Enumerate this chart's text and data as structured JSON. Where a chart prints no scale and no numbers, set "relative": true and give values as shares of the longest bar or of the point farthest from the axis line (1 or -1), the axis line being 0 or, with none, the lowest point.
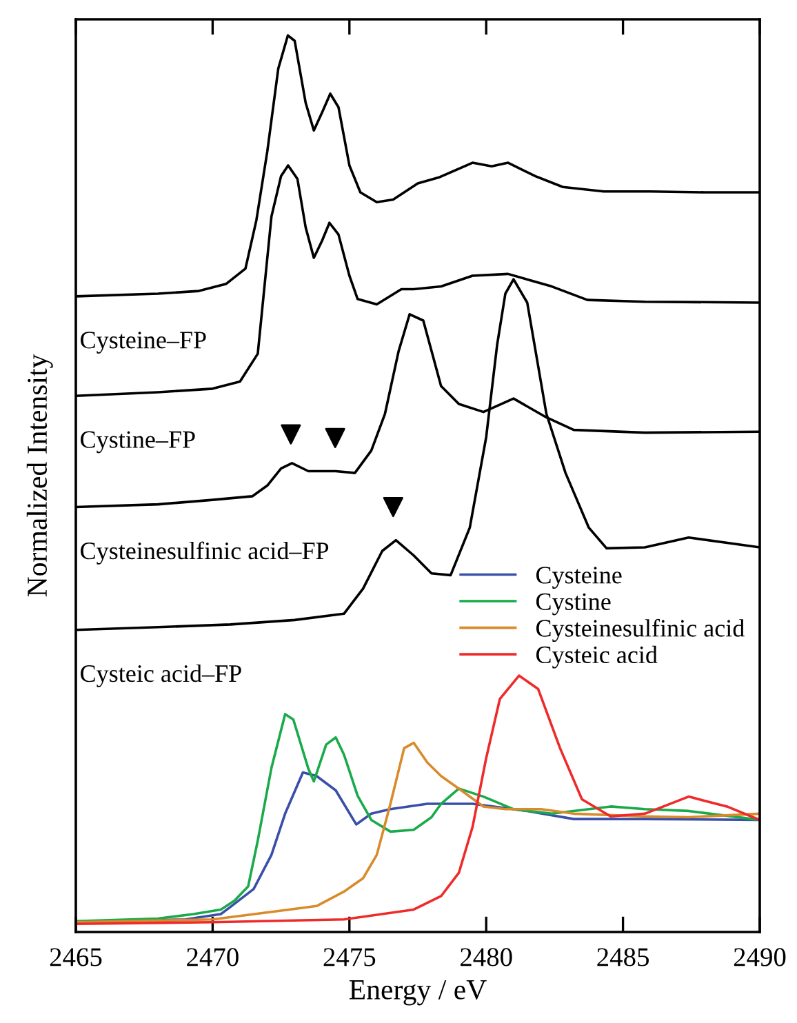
{
  "chart_data": {
    "type": "line",
    "relative": true,
    "xlabel": "Energy / eV",
    "ylabel": "Normalized Intensity",
    "xlim": [
      2465,
      2490
    ],
    "xticks": [
      2465,
      2470,
      2475,
      2480,
      2485,
      2490
    ],
    "tick_labels": "x",
    "grid": false,
    "legend": "right",
    "marker": "none",
    "line_style": "solid",
    "series": [
      {
        "name": "Cysteine–FP",
        "color": "#000000",
        "x": [
          2465,
          2468,
          2469.5,
          2470.5,
          2471.2,
          2471.6,
          2472.0,
          2472.4,
          2472.75,
          2473.0,
          2473.4,
          2473.7,
          2474.0,
          2474.3,
          2474.6,
          2475.0,
          2475.4,
          2476.0,
          2476.6,
          2477.5,
          2478.3,
          2479.5,
          2480.2,
          2480.8,
          2481.8,
          2482.8,
          2484.3,
          2486,
          2488,
          2490
        ],
        "values": [
          0.709,
          0.712,
          0.715,
          0.723,
          0.74,
          0.794,
          0.871,
          0.963,
          1,
          0.994,
          0.925,
          0.894,
          0.914,
          0.935,
          0.92,
          0.855,
          0.825,
          0.814,
          0.817,
          0.835,
          0.842,
          0.858,
          0.854,
          0.858,
          0.843,
          0.831,
          0.826,
          0.826,
          0.825,
          0.825
        ]
      },
      {
        "name": "Cystine–FP",
        "color": "#000000",
        "x": [
          2465,
          2468,
          2470,
          2471,
          2471.65,
          2472.15,
          2472.5,
          2472.76,
          2473.1,
          2473.4,
          2473.7,
          2474.0,
          2474.27,
          2474.6,
          2475.0,
          2475.3,
          2476.0,
          2476.9,
          2477.35,
          2478.35,
          2479.5,
          2480.8,
          2482.4,
          2483.7,
          2485.8,
          2490
        ],
        "values": [
          0.598,
          0.602,
          0.606,
          0.614,
          0.645,
          0.798,
          0.843,
          0.855,
          0.84,
          0.786,
          0.752,
          0.771,
          0.791,
          0.778,
          0.732,
          0.706,
          0.7,
          0.717,
          0.717,
          0.72,
          0.732,
          0.734,
          0.72,
          0.705,
          0.703,
          0.702
        ]
      },
      {
        "name": "Cysteinesulfinic acid–FP",
        "color": "#000000",
        "x": [
          2465,
          2468,
          2470,
          2471.45,
          2472.0,
          2472.5,
          2472.9,
          2473.5,
          2474.5,
          2475.2,
          2475.8,
          2476.3,
          2476.8,
          2477.2,
          2477.7,
          2478.35,
          2479.0,
          2479.9,
          2481.0,
          2482.2,
          2483.2,
          2485.8,
          2490
        ],
        "values": [
          0.474,
          0.477,
          0.482,
          0.486,
          0.498,
          0.517,
          0.523,
          0.514,
          0.514,
          0.512,
          0.537,
          0.578,
          0.648,
          0.689,
          0.682,
          0.609,
          0.589,
          0.58,
          0.595,
          0.574,
          0.56,
          0.557,
          0.558
        ]
      },
      {
        "name": "Cysteic acid–FP",
        "color": "#000000",
        "x": [
          2465,
          2468,
          2470.65,
          2473,
          2474.8,
          2475.5,
          2476.2,
          2476.7,
          2477.35,
          2478.0,
          2478.7,
          2479.4,
          2480.0,
          2480.4,
          2480.7,
          2481.0,
          2481.5,
          2482.2,
          2482.9,
          2483.75,
          2484.4,
          2485.8,
          2487.4,
          2490
        ],
        "values": [
          0.337,
          0.34,
          0.343,
          0.348,
          0.355,
          0.383,
          0.425,
          0.437,
          0.42,
          0.4,
          0.398,
          0.451,
          0.552,
          0.655,
          0.712,
          0.728,
          0.702,
          0.578,
          0.512,
          0.451,
          0.428,
          0.429,
          0.44,
          0.429
        ]
      },
      {
        "name": "Cysteine",
        "color": "#3a4fa8",
        "x": [
          2465,
          2469,
          2470.3,
          2470.65,
          2471.5,
          2472.15,
          2472.65,
          2473.3,
          2473.8,
          2474.5,
          2475.25,
          2475.8,
          2476.5,
          2477.85,
          2478.35,
          2479.5,
          2481.5,
          2483.2,
          2485.8,
          2490
        ],
        "values": [
          0.011,
          0.014,
          0.02,
          0.028,
          0.048,
          0.086,
          0.132,
          0.178,
          0.174,
          0.158,
          0.12,
          0.132,
          0.137,
          0.143,
          0.143,
          0.143,
          0.135,
          0.126,
          0.126,
          0.125
        ]
      },
      {
        "name": "Cystine",
        "color": "#1aaa4a",
        "x": [
          2465,
          2468,
          2469.3,
          2470.3,
          2470.8,
          2471.3,
          2471.65,
          2472.15,
          2472.65,
          2472.95,
          2473.5,
          2473.7,
          2474.15,
          2474.5,
          2474.8,
          2475.3,
          2475.8,
          2476.5,
          2477.35,
          2478.0,
          2478.35,
          2479.0,
          2479.9,
          2481.0,
          2482.4,
          2484.55,
          2485.8,
          2487.4,
          2490
        ],
        "values": [
          0.012,
          0.015,
          0.02,
          0.025,
          0.035,
          0.051,
          0.102,
          0.183,
          0.243,
          0.237,
          0.182,
          0.168,
          0.209,
          0.217,
          0.198,
          0.152,
          0.125,
          0.112,
          0.114,
          0.128,
          0.143,
          0.16,
          0.151,
          0.137,
          0.132,
          0.14,
          0.137,
          0.135,
          0.125
        ]
      },
      {
        "name": "Cysteinesulfinic acid",
        "color": "#d98a2a",
        "x": [
          2465,
          2470,
          2472.8,
          2473.8,
          2474.8,
          2475.5,
          2476.0,
          2476.5,
          2477.0,
          2477.35,
          2477.85,
          2478.35,
          2479.0,
          2479.9,
          2480.7,
          2482.0,
          2483.2,
          2485.8,
          2487.4,
          2490
        ],
        "values": [
          0.011,
          0.014,
          0.025,
          0.029,
          0.045,
          0.06,
          0.086,
          0.143,
          0.205,
          0.211,
          0.189,
          0.174,
          0.16,
          0.14,
          0.137,
          0.137,
          0.132,
          0.129,
          0.128,
          0.132
        ]
      },
      {
        "name": "Cysteic acid",
        "color": "#ee2a2a",
        "x": [
          2465,
          2470,
          2474.8,
          2477.35,
          2478.35,
          2479.0,
          2479.5,
          2480.0,
          2480.5,
          2481.2,
          2481.9,
          2482.7,
          2483.5,
          2484.55,
          2485.8,
          2487.4,
          2488.8,
          2490
        ],
        "values": [
          0.009,
          0.011,
          0.014,
          0.025,
          0.04,
          0.066,
          0.117,
          0.194,
          0.26,
          0.286,
          0.271,
          0.205,
          0.148,
          0.129,
          0.132,
          0.151,
          0.14,
          0.125
        ]
      },
      {
        "type": "scatter",
        "marker": "triangle",
        "color": "#000000",
        "x": [
          2472.86,
          2474.48,
          2476.6
        ],
        "values": [
          0.555,
          0.551,
          0.474
        ]
      }
    ]
  }
}
